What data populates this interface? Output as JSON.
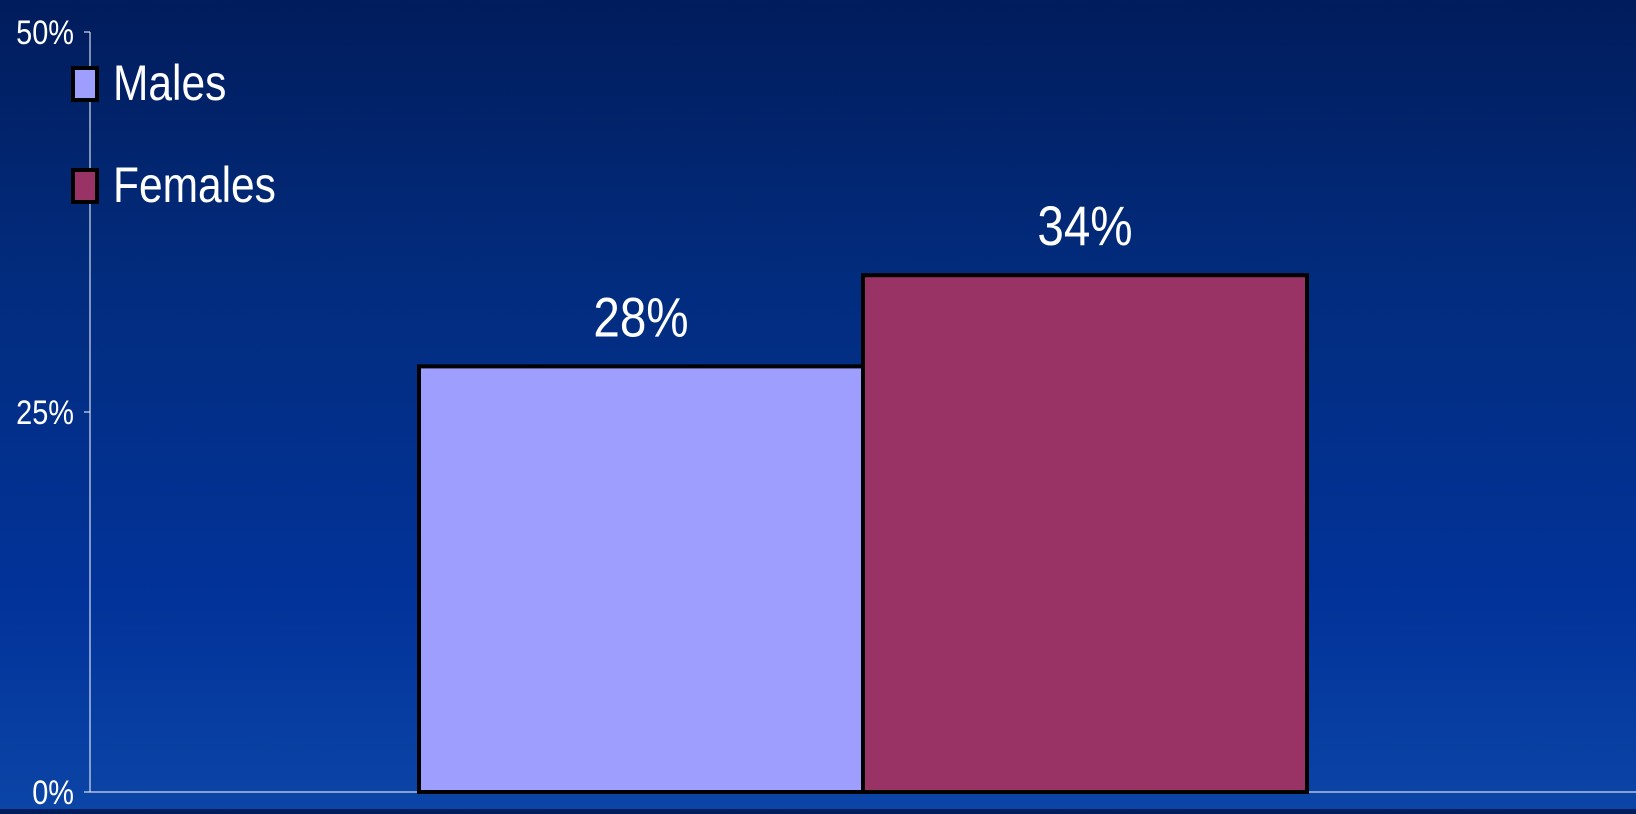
{
  "chart_data": {
    "type": "bar",
    "title": "",
    "xlabel": "",
    "ylabel": "",
    "ylim": [
      0,
      50
    ],
    "y_ticks": [
      "0%",
      "25%",
      "50%"
    ],
    "y_tick_values": [
      0,
      25,
      50
    ],
    "grid": false,
    "legend_position": "top-left",
    "series": [
      {
        "name": "Males",
        "value": 28,
        "label": "28%",
        "color": "#9e9efe"
      },
      {
        "name": "Females",
        "value": 34,
        "label": "34%",
        "color": "#993366"
      }
    ]
  },
  "colors": {
    "axis": "#ffffff",
    "bar_outline": "#000000",
    "text": "#ffffff"
  }
}
